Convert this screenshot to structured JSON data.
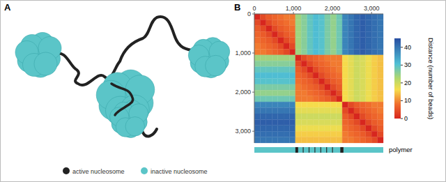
{
  "panel_a": {
    "label": "A",
    "key": [
      {
        "label": "active nucleosome",
        "color": "#222222"
      },
      {
        "label": "inactive nucleosome",
        "color": "#5bc5c8"
      }
    ]
  },
  "chart_data": {
    "type": "heatmap",
    "label": "B",
    "xlim": [
      0,
      3300
    ],
    "ylim": [
      0,
      3300
    ],
    "xticks": [
      0,
      {
        "value": 1000,
        "label": "1,000"
      },
      {
        "value": 2000,
        "label": "2,000"
      },
      {
        "value": 3000,
        "label": "3,000"
      }
    ],
    "yticks": [
      0,
      {
        "value": 1000,
        "label": "1,000"
      },
      {
        "value": 2000,
        "label": "2,000"
      },
      {
        "value": 3000,
        "label": "3,000"
      }
    ],
    "bins": [
      0,
      150,
      300,
      450,
      600,
      750,
      900,
      1050,
      1200,
      1350,
      1500,
      1650,
      1800,
      1950,
      2100,
      2250,
      2400,
      2550,
      2700,
      2850,
      3000,
      3150,
      3300
    ],
    "cells": [
      [
        0,
        4,
        6,
        7,
        8,
        9,
        9,
        24,
        26,
        29,
        31,
        30,
        27,
        25,
        28,
        38,
        40,
        42,
        43,
        42,
        41,
        40
      ],
      [
        4,
        0,
        4,
        6,
        7,
        8,
        9,
        24,
        26,
        29,
        31,
        30,
        27,
        25,
        28,
        38,
        40,
        42,
        43,
        42,
        41,
        40
      ],
      [
        6,
        4,
        0,
        4,
        6,
        7,
        8,
        24,
        26,
        29,
        31,
        30,
        27,
        25,
        28,
        38,
        40,
        42,
        43,
        42,
        41,
        40
      ],
      [
        7,
        6,
        4,
        0,
        4,
        6,
        7,
        24,
        26,
        29,
        31,
        30,
        27,
        25,
        28,
        38,
        40,
        42,
        43,
        42,
        41,
        40
      ],
      [
        8,
        7,
        6,
        4,
        0,
        4,
        6,
        24,
        26,
        29,
        31,
        30,
        27,
        25,
        28,
        38,
        40,
        42,
        43,
        42,
        41,
        40
      ],
      [
        9,
        8,
        7,
        6,
        4,
        0,
        4,
        24,
        26,
        29,
        31,
        30,
        27,
        25,
        28,
        38,
        40,
        42,
        43,
        42,
        41,
        40
      ],
      [
        9,
        9,
        8,
        7,
        6,
        4,
        0,
        24,
        26,
        29,
        31,
        30,
        27,
        25,
        28,
        38,
        40,
        42,
        43,
        42,
        41,
        40
      ],
      [
        24,
        24,
        24,
        24,
        24,
        24,
        24,
        0,
        4,
        6,
        7,
        8,
        9,
        9,
        9,
        16,
        18,
        20,
        19,
        17,
        15,
        14
      ],
      [
        26,
        26,
        26,
        26,
        26,
        26,
        26,
        4,
        0,
        4,
        6,
        7,
        8,
        9,
        9,
        16,
        18,
        20,
        19,
        17,
        15,
        14
      ],
      [
        29,
        29,
        29,
        29,
        29,
        29,
        29,
        6,
        4,
        0,
        4,
        6,
        7,
        8,
        9,
        16,
        18,
        20,
        19,
        17,
        15,
        14
      ],
      [
        31,
        31,
        31,
        31,
        31,
        31,
        31,
        7,
        6,
        4,
        0,
        4,
        6,
        7,
        8,
        16,
        18,
        20,
        19,
        17,
        15,
        14
      ],
      [
        30,
        30,
        30,
        30,
        30,
        30,
        30,
        8,
        7,
        6,
        4,
        0,
        4,
        6,
        7,
        16,
        18,
        20,
        19,
        17,
        15,
        14
      ],
      [
        27,
        27,
        27,
        27,
        27,
        27,
        27,
        9,
        8,
        7,
        6,
        4,
        0,
        4,
        6,
        16,
        18,
        20,
        19,
        17,
        15,
        14
      ],
      [
        25,
        25,
        25,
        25,
        25,
        25,
        25,
        9,
        9,
        8,
        7,
        6,
        4,
        0,
        4,
        16,
        18,
        20,
        19,
        17,
        15,
        14
      ],
      [
        28,
        28,
        28,
        28,
        28,
        28,
        28,
        9,
        9,
        9,
        8,
        7,
        6,
        4,
        0,
        16,
        18,
        20,
        19,
        17,
        15,
        14
      ],
      [
        38,
        38,
        38,
        38,
        38,
        38,
        38,
        16,
        16,
        16,
        16,
        16,
        16,
        16,
        16,
        0,
        4,
        6,
        7,
        8,
        9,
        9
      ],
      [
        40,
        40,
        40,
        40,
        40,
        40,
        40,
        18,
        18,
        18,
        18,
        18,
        18,
        18,
        18,
        4,
        0,
        4,
        6,
        7,
        8,
        9
      ],
      [
        42,
        42,
        42,
        42,
        42,
        42,
        42,
        20,
        20,
        20,
        20,
        20,
        20,
        20,
        20,
        6,
        4,
        0,
        4,
        6,
        7,
        8
      ],
      [
        43,
        43,
        43,
        43,
        43,
        43,
        43,
        19,
        19,
        19,
        19,
        19,
        19,
        19,
        19,
        7,
        6,
        4,
        0,
        4,
        6,
        7
      ],
      [
        42,
        42,
        42,
        42,
        42,
        42,
        42,
        17,
        17,
        17,
        17,
        17,
        17,
        17,
        17,
        8,
        7,
        6,
        4,
        0,
        4,
        6
      ],
      [
        41,
        41,
        41,
        41,
        41,
        41,
        41,
        15,
        15,
        15,
        15,
        15,
        15,
        15,
        15,
        9,
        8,
        7,
        6,
        4,
        0,
        4
      ],
      [
        40,
        40,
        40,
        40,
        40,
        40,
        40,
        14,
        14,
        14,
        14,
        14,
        14,
        14,
        14,
        9,
        9,
        8,
        7,
        6,
        4,
        0
      ]
    ],
    "colorbar": {
      "range": [
        0,
        45
      ],
      "ticks": [
        0,
        10,
        20,
        30,
        40
      ],
      "label": "Distance (number of beads)"
    },
    "polymer": {
      "label": "polymer",
      "color": "#5bc5c8",
      "active_color": "#222222",
      "active_segments": [
        [
          1050,
          1120
        ],
        [
          1240,
          1260
        ],
        [
          1390,
          1410
        ],
        [
          1540,
          1560
        ],
        [
          1690,
          1710
        ],
        [
          1840,
          1860
        ],
        [
          1990,
          2010
        ],
        [
          2200,
          2280
        ]
      ]
    }
  }
}
